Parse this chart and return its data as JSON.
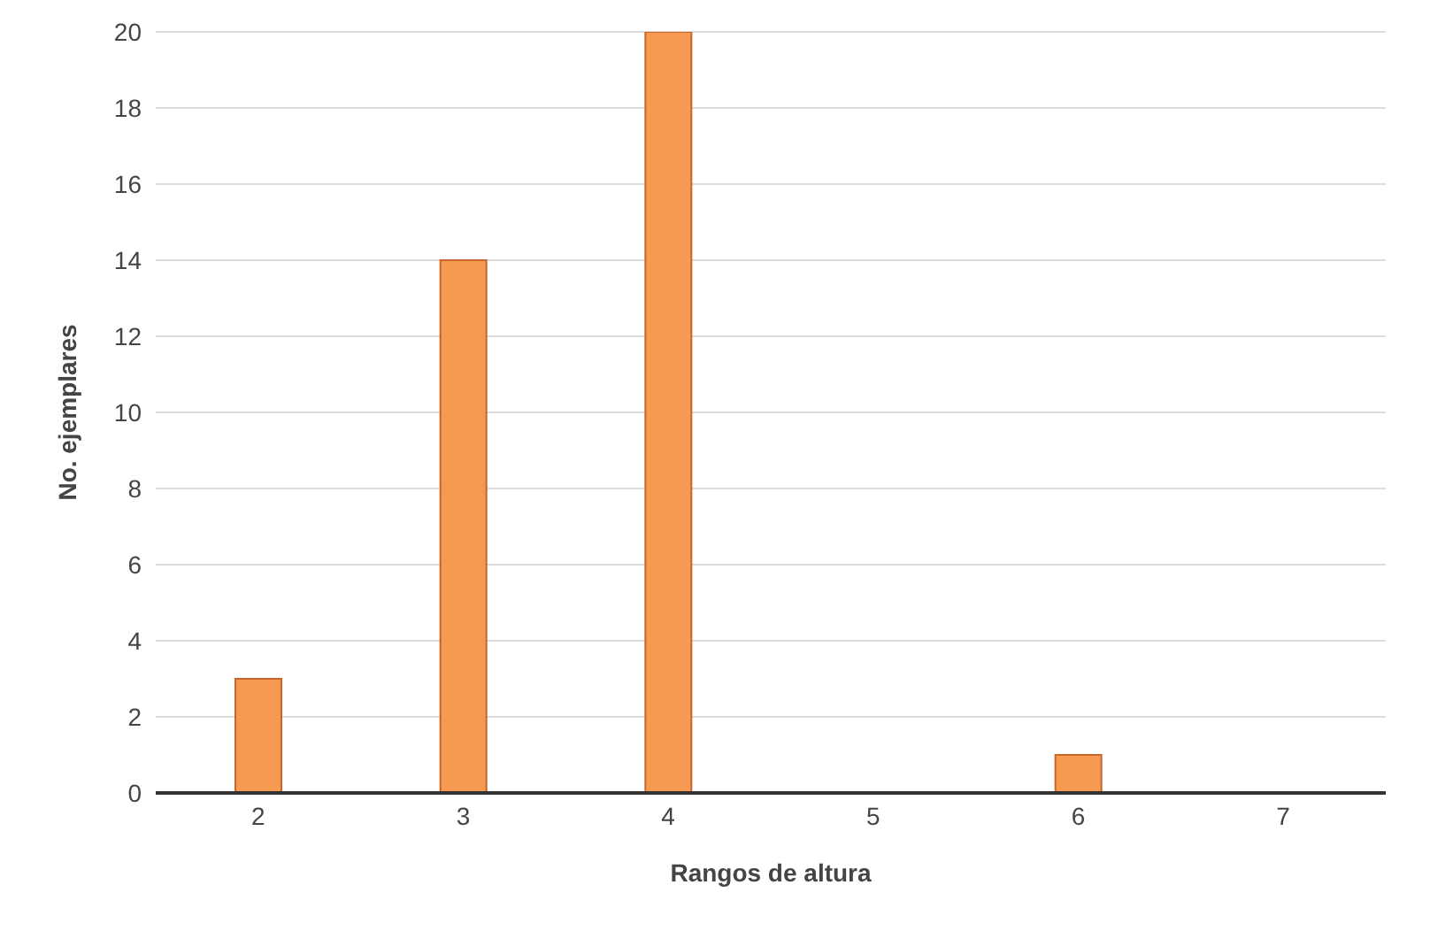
{
  "chart_data": {
    "type": "bar",
    "xlabel": "Rangos de altura",
    "ylabel": "No. ejemplares",
    "categories": [
      "2",
      "3",
      "4",
      "5",
      "6",
      "7"
    ],
    "values": [
      3,
      14,
      20,
      0,
      1,
      0
    ],
    "color": "#f59a50",
    "ylim": [
      0,
      20
    ],
    "yticks": [
      0,
      2,
      4,
      6,
      8,
      10,
      12,
      14,
      16,
      18,
      20
    ],
    "grid": "y"
  }
}
